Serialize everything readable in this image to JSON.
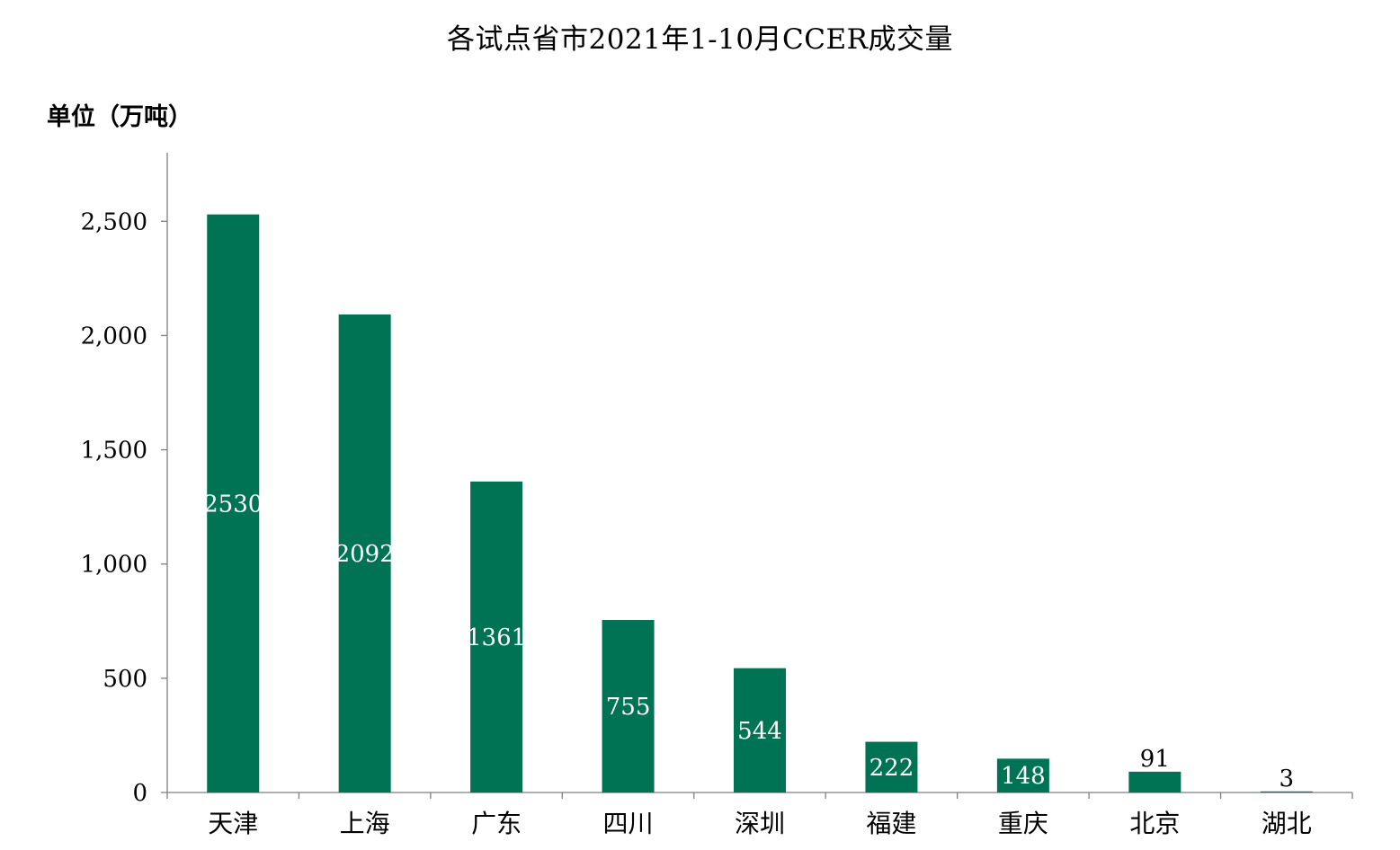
{
  "chart_data": {
    "type": "bar",
    "title": "各试点省市2021年1-10月CCER成交量",
    "ylabel": "单位（万吨）",
    "xlabel": "",
    "categories": [
      "天津",
      "上海",
      "广东",
      "四川",
      "深圳",
      "福建",
      "重庆",
      "北京",
      "湖北"
    ],
    "values": [
      2530,
      2092,
      1361,
      755,
      544,
      222,
      148,
      91,
      3
    ],
    "data_labels": [
      "2530",
      "2092",
      "1361",
      "755",
      "544",
      "222",
      "148",
      "91",
      "3"
    ],
    "ylim": [
      0,
      2800
    ],
    "yticks": [
      0,
      500,
      1000,
      1500,
      2000,
      2500
    ],
    "ytick_labels": [
      "0",
      "500",
      "1,000",
      "1,500",
      "2,000",
      "2,500"
    ],
    "bar_color": "#007355",
    "grid": false,
    "legend": "none"
  }
}
